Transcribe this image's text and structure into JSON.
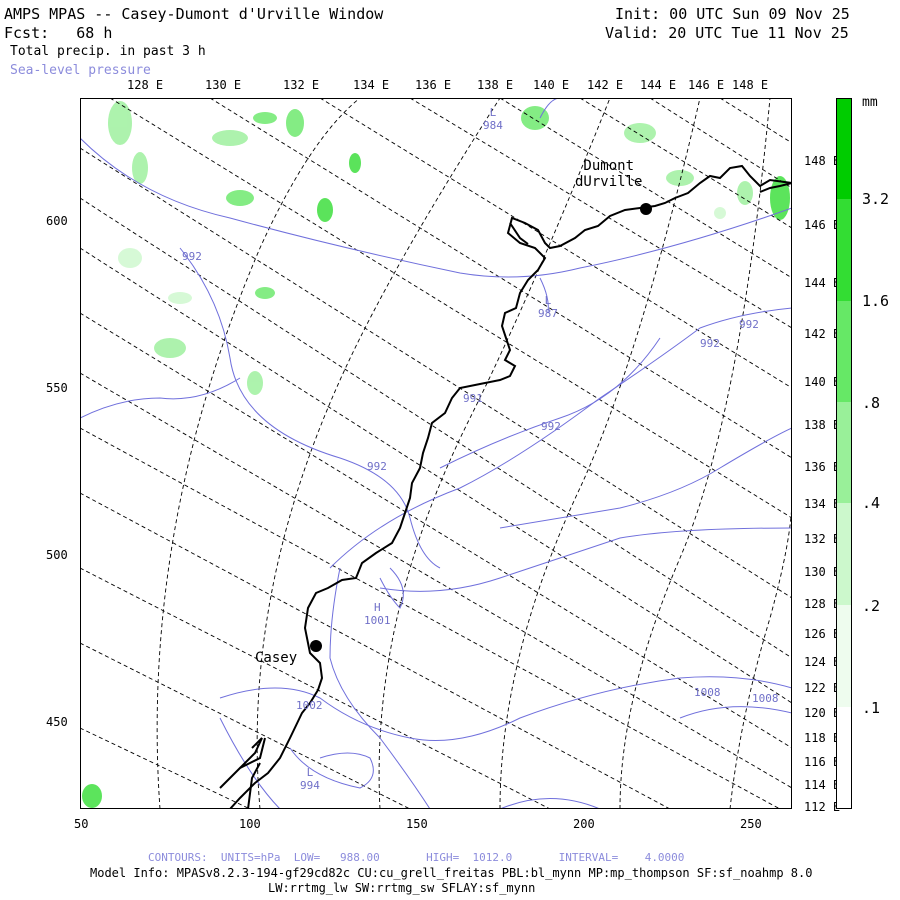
{
  "header": {
    "title": "AMPS MPAS -- Casey-Dumont d'Urville Window",
    "fcst": "Fcst:   68 h",
    "field": "Total precip. in past 3 h",
    "overlay": "Sea-level pressure",
    "init": "Init: 00 UTC Sun 09 Nov 25",
    "valid": "Valid: 20 UTC Tue 11 Nov 25"
  },
  "axes": {
    "top_lon": [
      "128 E",
      "130 E",
      "132 E",
      "134 E",
      "136 E",
      "138 E",
      "140 E",
      "142 E",
      "144 E",
      "146 E",
      "148 E"
    ],
    "right_lon": [
      "148 E",
      "146 E",
      "144 E",
      "142 E",
      "140 E",
      "138 E",
      "136 E",
      "134 E",
      "132 E",
      "130 E",
      "128 E",
      "126 E",
      "124 E",
      "122 E",
      "120 E",
      "118 E",
      "116 E",
      "114 E",
      "112 E"
    ],
    "left_y": [
      "600",
      "550",
      "500",
      "450"
    ],
    "bottom_x": [
      "50",
      "100",
      "150",
      "200",
      "250"
    ]
  },
  "stations": [
    {
      "name": "Dumont\ndUrville"
    },
    {
      "name": "Casey"
    }
  ],
  "pressure_labels": [
    {
      "text": "L\n984"
    },
    {
      "text": "992"
    },
    {
      "text": "L\n987"
    },
    {
      "text": "992"
    },
    {
      "text": "992"
    },
    {
      "text": "991"
    },
    {
      "text": "992"
    },
    {
      "text": "992"
    },
    {
      "text": "H\n1001"
    },
    {
      "text": "1002"
    },
    {
      "text": "1008"
    },
    {
      "text": "1008"
    },
    {
      "text": "L\n994"
    }
  ],
  "colorbar": {
    "unit": "mm",
    "labels": [
      "3.2",
      "1.6",
      ".8",
      ".4",
      ".2",
      ".1"
    ],
    "colors": [
      "#00cc00",
      "#33dd33",
      "#66e866",
      "#99f099",
      "#ccf8cc",
      "#eefcee",
      "#ffffff"
    ]
  },
  "footer": {
    "contours": "CONTOURS:  UNITS=hPa  LOW=   988.00       HIGH=  1012.0       INTERVAL=    4.0000",
    "model_info": "Model Info: MPASv8.2.3-194-gf29cd82c CU:cu_grell_freitas PBL:bl_mynn MP:mp_thompson SF:sf_noahmp 8.0",
    "physics": "LW:rrtmg_lw SW:rrtmg_sw SFLAY:sf_mynn"
  }
}
